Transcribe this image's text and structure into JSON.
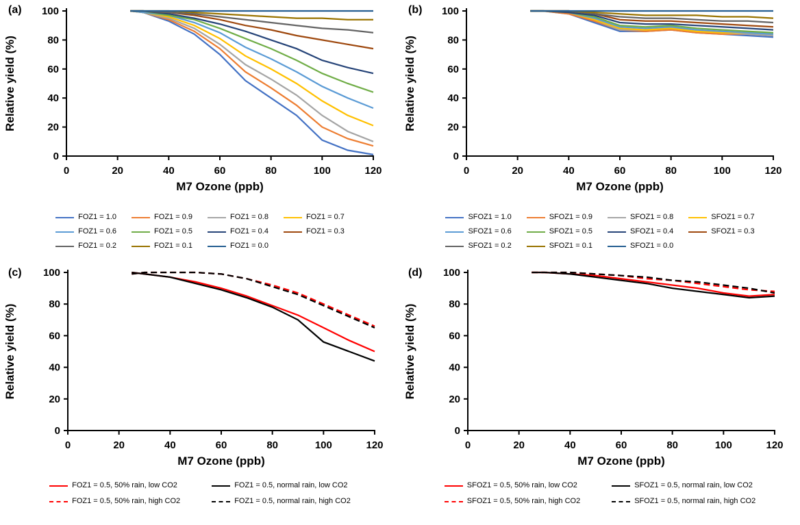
{
  "figure": {
    "xlabel": "M7 Ozone (ppb)",
    "ylabel": "Relative yield (%)"
  },
  "chart_data": [
    {
      "id": "a",
      "panel_label": "(a)",
      "type": "line",
      "xlabel": "M7 Ozone (ppb)",
      "ylabel": "Relative yield (%)",
      "xlim": [
        0,
        120
      ],
      "ylim": [
        0,
        100
      ],
      "xticks": [
        0,
        20,
        40,
        60,
        80,
        100,
        120
      ],
      "yticks": [
        0,
        20,
        40,
        60,
        80,
        100
      ],
      "legend_position": "below",
      "legend_columns": 4,
      "x": [
        25,
        30,
        40,
        50,
        60,
        70,
        80,
        90,
        100,
        110,
        120
      ],
      "series": [
        {
          "name": "FOZ1 = 1.0",
          "color": "#4472C4",
          "dash": "solid",
          "values": [
            100,
            99,
            93,
            84,
            70,
            52,
            40,
            28,
            11,
            4,
            1
          ]
        },
        {
          "name": "FOZ1 = 0.9",
          "color": "#ED7D31",
          "dash": "solid",
          "values": [
            100,
            99,
            94,
            86,
            74,
            58,
            47,
            35,
            20,
            12,
            7
          ]
        },
        {
          "name": "FOZ1 = 0.8",
          "color": "#A5A5A5",
          "dash": "solid",
          "values": [
            100,
            99,
            95,
            88,
            77,
            63,
            53,
            42,
            28,
            17,
            10
          ]
        },
        {
          "name": "FOZ1 = 0.7",
          "color": "#FFC000",
          "dash": "solid",
          "values": [
            100,
            99,
            96,
            90,
            81,
            69,
            60,
            50,
            38,
            28,
            21
          ]
        },
        {
          "name": "FOZ1 = 0.6",
          "color": "#5B9BD5",
          "dash": "solid",
          "values": [
            100,
            99,
            97,
            92,
            85,
            75,
            67,
            58,
            48,
            40,
            33
          ]
        },
        {
          "name": "FOZ1 = 0.5",
          "color": "#70AD47",
          "dash": "solid",
          "values": [
            100,
            100,
            97,
            94,
            88,
            81,
            74,
            66,
            57,
            50,
            44
          ]
        },
        {
          "name": "FOZ1 = 0.4",
          "color": "#264478",
          "dash": "solid",
          "values": [
            100,
            100,
            98,
            95,
            91,
            86,
            80,
            74,
            66,
            61,
            57
          ]
        },
        {
          "name": "FOZ1 = 0.3",
          "color": "#9E480E",
          "dash": "solid",
          "values": [
            100,
            100,
            99,
            97,
            94,
            90,
            87,
            83,
            80,
            77,
            74
          ]
        },
        {
          "name": "FOZ1 = 0.2",
          "color": "#636363",
          "dash": "solid",
          "values": [
            100,
            100,
            99,
            98,
            96,
            94,
            92,
            90,
            88,
            87,
            85
          ]
        },
        {
          "name": "FOZ1 = 0.1",
          "color": "#997300",
          "dash": "solid",
          "values": [
            100,
            100,
            100,
            99,
            98,
            97,
            96,
            95,
            95,
            94,
            94
          ]
        },
        {
          "name": "FOZ1 = 0.0",
          "color": "#255E91",
          "dash": "solid",
          "values": [
            100,
            100,
            100,
            100,
            100,
            100,
            100,
            100,
            100,
            100,
            100
          ]
        }
      ]
    },
    {
      "id": "b",
      "panel_label": "(b)",
      "type": "line",
      "xlabel": "M7 Ozone (ppb)",
      "ylabel": "Relative yield (%)",
      "xlim": [
        0,
        120
      ],
      "ylim": [
        0,
        100
      ],
      "xticks": [
        0,
        20,
        40,
        60,
        80,
        100,
        120
      ],
      "yticks": [
        0,
        20,
        40,
        60,
        80,
        100
      ],
      "legend_position": "below",
      "legend_columns": 4,
      "x": [
        25,
        30,
        40,
        50,
        60,
        70,
        80,
        90,
        100,
        110,
        120
      ],
      "series": [
        {
          "name": "SFOZ1 = 1.0",
          "color": "#4472C4",
          "dash": "solid",
          "values": [
            100,
            100,
            98,
            92,
            86,
            86,
            87,
            85,
            84,
            83,
            82
          ]
        },
        {
          "name": "SFOZ1 = 0.9",
          "color": "#ED7D31",
          "dash": "solid",
          "values": [
            100,
            100,
            98,
            93,
            87,
            86,
            87,
            85,
            84,
            84,
            83
          ]
        },
        {
          "name": "SFOZ1 = 0.8",
          "color": "#A5A5A5",
          "dash": "solid",
          "values": [
            100,
            100,
            99,
            94,
            87,
            87,
            88,
            86,
            85,
            84,
            83
          ]
        },
        {
          "name": "SFOZ1 = 0.7",
          "color": "#FFC000",
          "dash": "solid",
          "values": [
            100,
            100,
            99,
            94,
            88,
            87,
            88,
            86,
            85,
            85,
            84
          ]
        },
        {
          "name": "SFOZ1 = 0.6",
          "color": "#5B9BD5",
          "dash": "solid",
          "values": [
            100,
            100,
            99,
            95,
            89,
            88,
            89,
            87,
            86,
            85,
            84
          ]
        },
        {
          "name": "SFOZ1 = 0.5",
          "color": "#70AD47",
          "dash": "solid",
          "values": [
            100,
            100,
            99,
            96,
            90,
            89,
            90,
            88,
            87,
            86,
            85
          ]
        },
        {
          "name": "SFOZ1 = 0.4",
          "color": "#264478",
          "dash": "solid",
          "values": [
            100,
            100,
            99,
            97,
            92,
            91,
            91,
            90,
            89,
            88,
            87
          ]
        },
        {
          "name": "SFOZ1 = 0.3",
          "color": "#9E480E",
          "dash": "solid",
          "values": [
            100,
            100,
            100,
            98,
            94,
            93,
            93,
            92,
            91,
            90,
            89
          ]
        },
        {
          "name": "SFOZ1 = 0.2",
          "color": "#636363",
          "dash": "solid",
          "values": [
            100,
            100,
            100,
            98,
            96,
            95,
            95,
            94,
            93,
            93,
            92
          ]
        },
        {
          "name": "SFOZ1 = 0.1",
          "color": "#997300",
          "dash": "solid",
          "values": [
            100,
            100,
            100,
            99,
            98,
            97,
            97,
            97,
            96,
            96,
            95
          ]
        },
        {
          "name": "SFOZ1 = 0.0",
          "color": "#255E91",
          "dash": "solid",
          "values": [
            100,
            100,
            100,
            100,
            100,
            100,
            100,
            100,
            100,
            100,
            100
          ]
        }
      ]
    },
    {
      "id": "c",
      "panel_label": "(c)",
      "type": "line",
      "xlabel": "M7 Ozone (ppb)",
      "ylabel": "Relative yield (%)",
      "xlim": [
        0,
        120
      ],
      "ylim": [
        0,
        100
      ],
      "xticks": [
        0,
        20,
        40,
        60,
        80,
        100,
        120
      ],
      "yticks": [
        0,
        20,
        40,
        60,
        80,
        100
      ],
      "legend_position": "below",
      "legend_columns": 2,
      "x": [
        25,
        30,
        40,
        50,
        60,
        70,
        80,
        90,
        100,
        110,
        120
      ],
      "series": [
        {
          "name": "FOZ1 = 0.5, 50% rain, low CO2",
          "color": "#FF0000",
          "dash": "solid",
          "values": [
            100,
            99,
            97,
            94,
            90,
            85,
            79,
            73,
            65,
            57,
            50
          ]
        },
        {
          "name": "FOZ1 = 0.5, normal rain, low CO2",
          "color": "#000000",
          "dash": "solid",
          "values": [
            100,
            99,
            97,
            93,
            89,
            84,
            78,
            70,
            56,
            50,
            44
          ]
        },
        {
          "name": "FOZ1 = 0.5, 50% rain, high CO2",
          "color": "#FF0000",
          "dash": "dashed",
          "values": [
            99,
            100,
            100,
            100,
            99,
            96,
            92,
            87,
            80,
            73,
            66
          ]
        },
        {
          "name": "FOZ1 = 0.5, normal rain, high CO2",
          "color": "#000000",
          "dash": "dashed",
          "values": [
            99,
            100,
            100,
            100,
            99,
            96,
            91,
            86,
            79,
            72,
            65
          ]
        }
      ]
    },
    {
      "id": "d",
      "panel_label": "(d)",
      "type": "line",
      "xlabel": "M7 Ozone (ppb)",
      "ylabel": "Relative yield (%)",
      "xlim": [
        0,
        120
      ],
      "ylim": [
        0,
        100
      ],
      "xticks": [
        0,
        20,
        40,
        60,
        80,
        100,
        120
      ],
      "yticks": [
        0,
        20,
        40,
        60,
        80,
        100
      ],
      "legend_position": "below",
      "legend_columns": 2,
      "x": [
        25,
        30,
        40,
        50,
        60,
        70,
        80,
        90,
        100,
        110,
        120
      ],
      "series": [
        {
          "name": "SFOZ1 = 0.5, 50% rain, low CO2",
          "color": "#FF0000",
          "dash": "solid",
          "values": [
            100,
            100,
            99,
            98,
            96,
            94,
            92,
            90,
            87,
            85,
            86
          ]
        },
        {
          "name": "SFOZ1 = 0.5, normal rain, low CO2",
          "color": "#000000",
          "dash": "solid",
          "values": [
            100,
            100,
            99,
            97,
            95,
            93,
            90,
            88,
            86,
            84,
            85
          ]
        },
        {
          "name": "SFOZ1 = 0.5, 50% rain, high CO2",
          "color": "#FF0000",
          "dash": "dashed",
          "values": [
            100,
            100,
            100,
            99,
            98,
            96,
            95,
            93,
            91,
            89,
            88
          ]
        },
        {
          "name": "SFOZ1 = 0.5, normal rain, high CO2",
          "color": "#000000",
          "dash": "dashed",
          "values": [
            100,
            100,
            100,
            99,
            98,
            97,
            95,
            94,
            92,
            90,
            87
          ]
        }
      ]
    }
  ]
}
